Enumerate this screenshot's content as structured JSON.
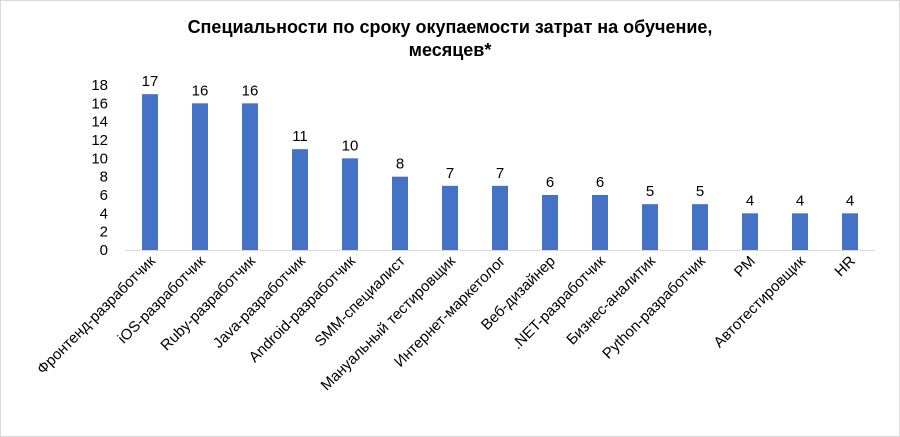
{
  "chart_data": {
    "type": "bar",
    "title_line1": "Специальности по сроку окупаемости затрат на обучение,",
    "title_line2": "месяцев*",
    "categories": [
      "Фронтенд-разработчик",
      "iOS-разработчик",
      "Ruby-разработчик",
      "Java-разработчик",
      "Android-разработчик",
      "SMM-специалист",
      "Мануальный тестировщик",
      "Интернет-маркетолог",
      "Веб-дизайнер",
      ".NET-разработчик",
      "Бизнес-аналитик",
      "Python-разработчик",
      "PM",
      "Автотестировщик",
      "HR"
    ],
    "values": [
      17,
      16,
      16,
      11,
      10,
      8,
      7,
      7,
      6,
      6,
      5,
      5,
      4,
      4,
      4
    ],
    "ylim": [
      0,
      18
    ],
    "yticks": [
      0,
      2,
      4,
      6,
      8,
      10,
      12,
      14,
      16,
      18
    ],
    "data_labels": true,
    "grid": false,
    "legend": "none",
    "bar_color": "#4472c4",
    "axis_color": "#d9d9d9"
  }
}
